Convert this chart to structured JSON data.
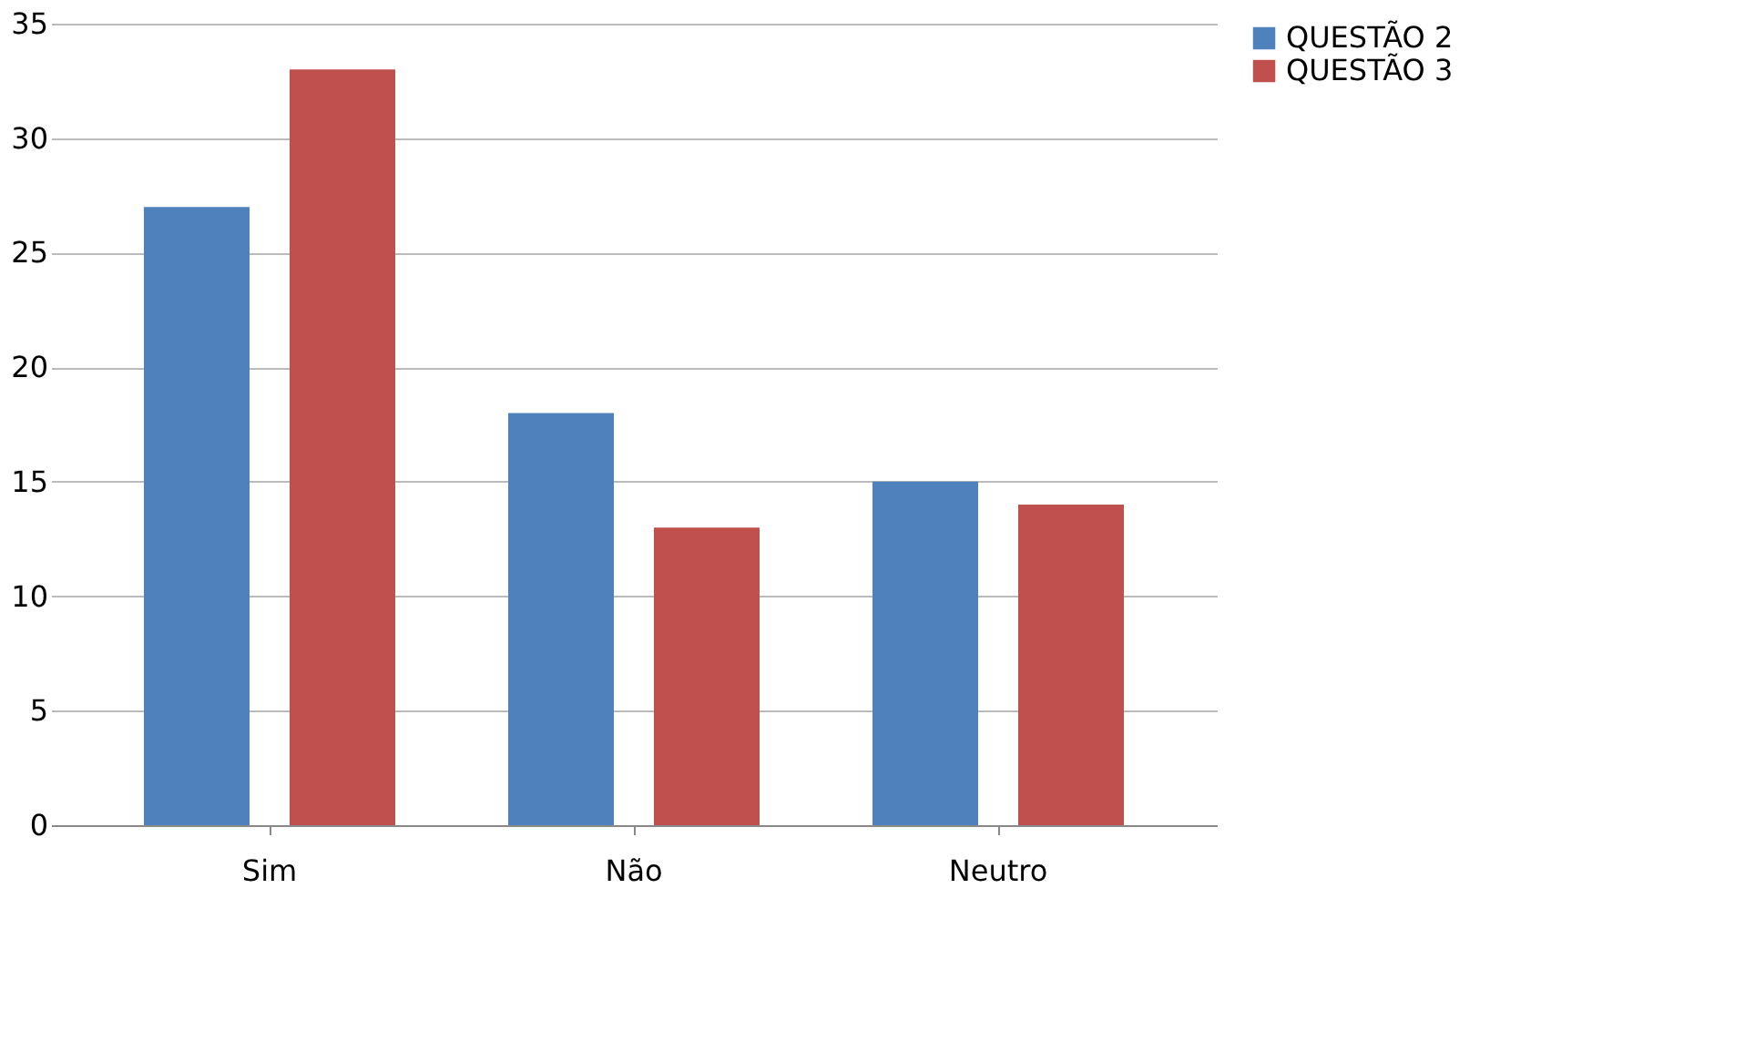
{
  "chart_data": {
    "type": "bar",
    "categories": [
      "Sim",
      "Não",
      "Neutro"
    ],
    "series": [
      {
        "name": "QUESTÃO 2",
        "color": "#4f81bd",
        "values": [
          27,
          18,
          15
        ]
      },
      {
        "name": "QUESTÃO 3",
        "color": "#c0504d",
        "values": [
          33,
          13,
          14
        ]
      }
    ],
    "ylim": [
      0,
      35
    ],
    "yticks": [
      0,
      5,
      10,
      15,
      20,
      25,
      30,
      35
    ],
    "grid": "y",
    "legend": "right"
  }
}
